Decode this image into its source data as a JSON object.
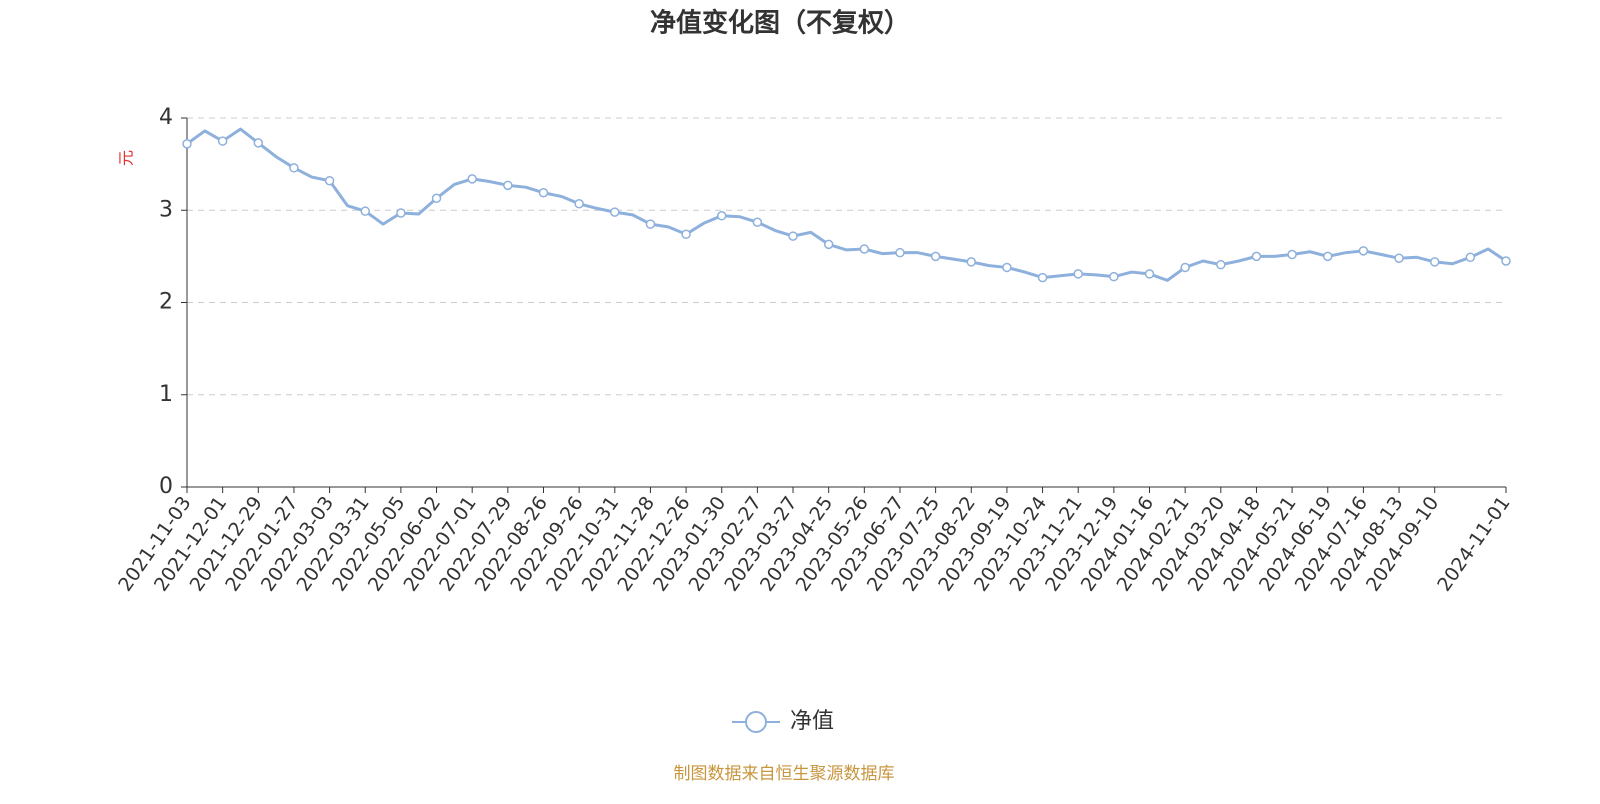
{
  "chart_data": {
    "type": "line",
    "title": "净值变化图（不复权）",
    "y_axis_label": "元",
    "source": "制图数据来自恒生聚源数据库",
    "ylim": [
      0,
      4
    ],
    "yticks": [
      0,
      1,
      2,
      3,
      4
    ],
    "grid": true,
    "categories": [
      "2021-11-03",
      null,
      "2021-12-01",
      null,
      "2021-12-29",
      null,
      "2022-01-27",
      null,
      "2022-03-03",
      null,
      "2022-03-31",
      null,
      "2022-05-05",
      null,
      "2022-06-02",
      null,
      "2022-07-01",
      null,
      "2022-07-29",
      null,
      "2022-08-26",
      null,
      "2022-09-26",
      null,
      "2022-10-31",
      null,
      "2022-11-28",
      null,
      "2022-12-26",
      null,
      "2023-01-30",
      null,
      "2023-02-27",
      null,
      "2023-03-27",
      null,
      "2023-04-25",
      null,
      "2023-05-26",
      null,
      "2023-06-27",
      null,
      "2023-07-25",
      null,
      "2023-08-22",
      null,
      "2023-09-19",
      null,
      "2023-10-24",
      null,
      "2023-11-21",
      null,
      "2023-12-19",
      null,
      "2024-01-16",
      null,
      "2024-02-21",
      null,
      "2024-03-20",
      null,
      "2024-04-18",
      null,
      "2024-05-21",
      null,
      "2024-06-19",
      null,
      "2024-07-16",
      null,
      "2024-08-13",
      null,
      "2024-09-10",
      null,
      null,
      null,
      "2024-11-01"
    ],
    "series": [
      {
        "name": "净值",
        "color": "#8eb0dc",
        "values": [
          3.72,
          3.86,
          3.75,
          3.88,
          3.73,
          3.58,
          3.46,
          3.36,
          3.32,
          3.05,
          2.99,
          2.85,
          2.97,
          2.96,
          3.13,
          3.28,
          3.34,
          3.31,
          3.27,
          3.25,
          3.19,
          3.15,
          3.07,
          3.02,
          2.98,
          2.95,
          2.85,
          2.82,
          2.74,
          2.86,
          2.94,
          2.93,
          2.87,
          2.78,
          2.72,
          2.76,
          2.63,
          2.57,
          2.58,
          2.53,
          2.54,
          2.54,
          2.5,
          2.47,
          2.44,
          2.4,
          2.38,
          2.33,
          2.27,
          2.29,
          2.31,
          2.3,
          2.28,
          2.33,
          2.31,
          2.24,
          2.38,
          2.45,
          2.41,
          2.45,
          2.5,
          2.5,
          2.52,
          2.55,
          2.5,
          2.54,
          2.56,
          2.52,
          2.48,
          2.49,
          2.44,
          2.42,
          2.49,
          2.58,
          2.45
        ]
      }
    ]
  }
}
